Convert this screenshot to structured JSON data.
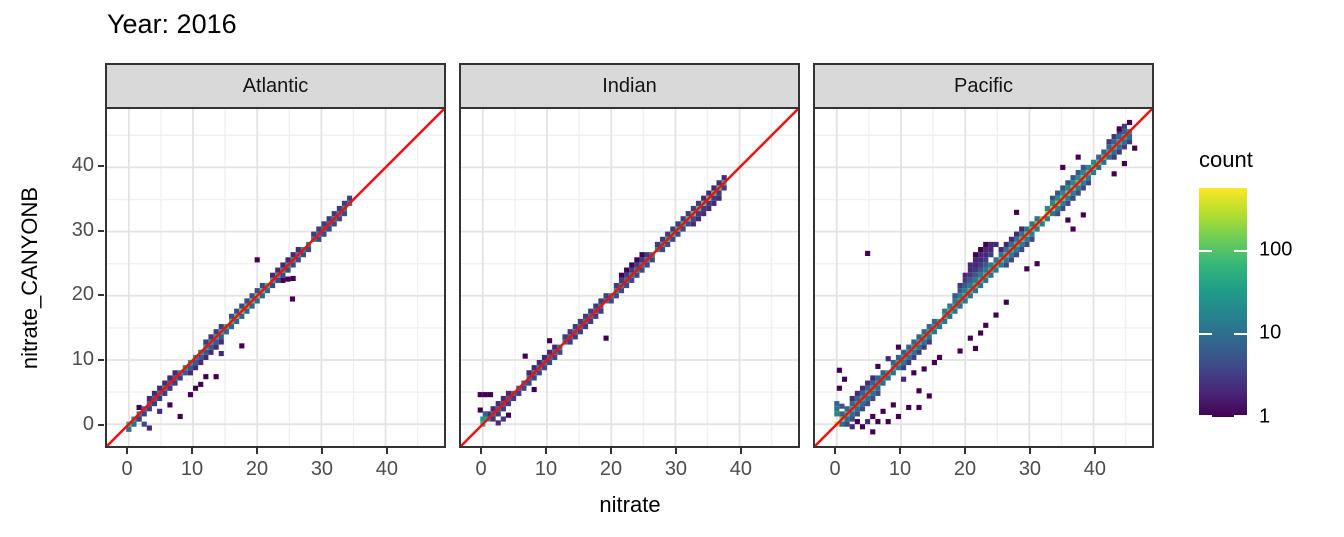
{
  "chart_data": {
    "type": "heatmap",
    "title": "Year: 2016",
    "xlabel": "nitrate",
    "ylabel": "nitrate_CANYONB",
    "axis": {
      "domain": [
        -3.4,
        49.1
      ],
      "ticks": [
        0,
        10,
        20,
        30,
        40
      ],
      "minor_ticks": [
        5,
        15,
        25,
        35,
        45
      ],
      "tick_color": "#4d4d4d",
      "major_grid_color": "#e3e3e3",
      "minor_grid_color": "#f0f0f0"
    },
    "bin_width": 0.8,
    "reference_line": {
      "type": "y=x",
      "color": "#f40f0f",
      "width": 2.5
    },
    "legend": {
      "title": "count",
      "scale": "log10",
      "ticks": [
        100,
        10,
        1
      ],
      "max": 550
    },
    "viridis": [
      "#440154",
      "#482878",
      "#3e4a89",
      "#31688e",
      "#26828e",
      "#1f9e89",
      "#35b779",
      "#6dcd59",
      "#b4de2c",
      "#fde725"
    ],
    "strip_fill": "#d9d9d9",
    "panel_border": "#333333",
    "panels": [
      {
        "name": "Atlantic",
        "diag": {
          "start": 0,
          "step": 0.8,
          "counts": [
            60,
            30,
            15,
            10,
            8,
            12,
            18,
            15,
            10,
            12,
            20,
            25,
            30,
            20,
            22,
            35,
            30,
            40,
            50,
            60,
            80,
            110,
            130,
            110,
            100,
            120,
            90,
            70,
            50,
            40,
            35,
            30,
            28,
            25,
            22,
            20,
            16,
            14,
            12,
            10,
            14,
            18,
            22,
            12
          ]
        },
        "runs": [
          [
            0.0,
            1.6,
            -0.8,
            10
          ],
          [
            1.6,
            8.0,
            -0.8,
            3
          ],
          [
            3.2,
            7.2,
            0.8,
            2
          ],
          [
            8.8,
            15.2,
            -0.8,
            6
          ],
          [
            9.6,
            14.4,
            -1.6,
            2
          ],
          [
            12.0,
            14.4,
            0.8,
            3
          ],
          [
            15.2,
            21.6,
            -0.8,
            8
          ],
          [
            16.0,
            20.8,
            0.8,
            4
          ],
          [
            22.4,
            28.0,
            -0.8,
            4
          ],
          [
            22.4,
            26.4,
            0.8,
            2
          ],
          [
            28.8,
            34.4,
            0.8,
            3
          ],
          [
            29.6,
            33.6,
            -0.8,
            4
          ]
        ],
        "cells": [
          [
            3.2,
            -0.6,
            2
          ],
          [
            8.0,
            1.2,
            1
          ],
          [
            6.4,
            3.0,
            1
          ],
          [
            4.8,
            2.0,
            2
          ],
          [
            1.6,
            2.6,
            1
          ],
          [
            2.4,
            0.0,
            4
          ],
          [
            9.6,
            4.6,
            1
          ],
          [
            10.4,
            5.6,
            1
          ],
          [
            11.2,
            6.2,
            1
          ],
          [
            12.0,
            7.4,
            1
          ],
          [
            13.6,
            7.4,
            1
          ],
          [
            14.4,
            11.0,
            2
          ],
          [
            17.6,
            12.2,
            1
          ],
          [
            20.0,
            25.6,
            1
          ],
          [
            24.0,
            22.4,
            1
          ],
          [
            24.8,
            22.6,
            1
          ],
          [
            25.6,
            22.7,
            1
          ],
          [
            25.5,
            19.5,
            1
          ]
        ]
      },
      {
        "name": "Indian",
        "diag": {
          "start": 0,
          "step": 0.8,
          "counts": [
            60,
            30,
            12,
            8,
            6,
            8,
            10,
            8,
            10,
            12,
            15,
            18,
            20,
            15,
            12,
            15,
            12,
            10,
            12,
            15,
            18,
            15,
            12,
            15,
            12,
            15,
            18,
            20,
            15,
            18,
            20,
            25,
            20,
            18,
            25,
            35,
            50,
            60,
            70,
            60,
            80,
            100,
            90,
            110,
            120,
            100,
            90,
            60
          ]
        },
        "runs": [
          [
            0.8,
            4.0,
            0.8,
            2
          ],
          [
            1.6,
            5.6,
            -0.8,
            3
          ],
          [
            6.4,
            12.0,
            -0.8,
            4
          ],
          [
            7.2,
            11.2,
            0.8,
            2
          ],
          [
            12.8,
            19.2,
            0.8,
            3
          ],
          [
            13.6,
            18.4,
            -0.8,
            3
          ],
          [
            20.0,
            26.4,
            -0.8,
            4
          ],
          [
            20.8,
            25.6,
            0.8,
            3
          ],
          [
            21.6,
            24.8,
            1.6,
            1
          ],
          [
            27.2,
            33.6,
            0.8,
            3
          ],
          [
            28.0,
            32.8,
            -0.8,
            4
          ],
          [
            32.8,
            36.8,
            -1.6,
            2
          ],
          [
            33.6,
            37.6,
            -0.8,
            3
          ],
          [
            34.4,
            37.6,
            0.8,
            2
          ]
        ],
        "cells": [
          [
            -0.4,
            4.6,
            1
          ],
          [
            0.4,
            4.6,
            1
          ],
          [
            1.2,
            4.6,
            1
          ],
          [
            -0.4,
            2.2,
            1
          ],
          [
            0.0,
            0.8,
            30
          ],
          [
            0.4,
            1.6,
            8
          ],
          [
            2.4,
            0.2,
            2
          ],
          [
            3.2,
            0.8,
            3
          ],
          [
            4.0,
            1.4,
            1
          ],
          [
            6.6,
            10.6,
            1
          ],
          [
            19.2,
            13.4,
            1
          ],
          [
            8.0,
            5.4,
            1
          ],
          [
            10.4,
            13.0,
            1
          ]
        ]
      },
      {
        "name": "Pacific",
        "diag": {
          "start": 0,
          "step": 0.8,
          "counts": [
            400,
            150,
            80,
            50,
            40,
            45,
            50,
            40,
            35,
            30,
            40,
            45,
            50,
            40,
            35,
            50,
            60,
            55,
            45,
            40,
            50,
            60,
            70,
            60,
            50,
            60,
            70,
            80,
            70,
            60,
            70,
            80,
            90,
            80,
            70,
            80,
            90,
            100,
            110,
            130,
            200,
            250,
            200,
            150,
            120,
            130,
            140,
            120,
            100,
            90,
            100,
            90,
            80,
            70,
            60,
            50,
            40,
            30
          ]
        },
        "runs": [
          [
            0.8,
            7.2,
            0.8,
            8
          ],
          [
            0.8,
            8.0,
            -0.8,
            10
          ],
          [
            1.6,
            6.4,
            -1.6,
            4
          ],
          [
            2.4,
            5.6,
            1.6,
            2
          ],
          [
            8.8,
            16.0,
            -0.8,
            12
          ],
          [
            8.8,
            15.2,
            0.8,
            8
          ],
          [
            10.4,
            14.4,
            -1.6,
            3
          ],
          [
            16.8,
            24.0,
            0.8,
            15
          ],
          [
            16.8,
            24.0,
            -0.8,
            12
          ],
          [
            18.4,
            23.2,
            1.6,
            6
          ],
          [
            19.2,
            24.0,
            2.4,
            3
          ],
          [
            20.0,
            24.8,
            3.2,
            2
          ],
          [
            20.8,
            24.0,
            4.0,
            2
          ],
          [
            21.6,
            23.2,
            4.8,
            1
          ],
          [
            24.8,
            32.0,
            -0.8,
            15
          ],
          [
            24.8,
            31.2,
            0.8,
            12
          ],
          [
            26.4,
            30.4,
            -1.6,
            4
          ],
          [
            25.6,
            28.8,
            1.6,
            2
          ],
          [
            32.8,
            40.0,
            0.8,
            20
          ],
          [
            32.8,
            40.0,
            -0.8,
            15
          ],
          [
            33.6,
            38.4,
            1.6,
            5
          ],
          [
            34.4,
            39.2,
            -1.6,
            4
          ],
          [
            40.8,
            45.6,
            -0.8,
            10
          ],
          [
            40.8,
            44.8,
            0.8,
            8
          ],
          [
            42.4,
            44.8,
            1.6,
            3
          ],
          [
            43.2,
            45.6,
            -1.6,
            3
          ]
        ],
        "cells": [
          [
            0.0,
            1.6,
            20
          ],
          [
            0.0,
            2.4,
            12
          ],
          [
            0.0,
            3.2,
            8
          ],
          [
            0.8,
            2.8,
            5
          ],
          [
            0.4,
            5.6,
            1
          ],
          [
            0.4,
            8.4,
            1
          ],
          [
            1.2,
            7.0,
            1
          ],
          [
            2.4,
            -0.4,
            2
          ],
          [
            3.2,
            0.4,
            1
          ],
          [
            4.0,
            -0.4,
            1
          ],
          [
            4.8,
            0.4,
            2
          ],
          [
            5.6,
            1.2,
            1
          ],
          [
            6.4,
            0.4,
            1
          ],
          [
            7.2,
            2.0,
            1
          ],
          [
            8.0,
            0.4,
            1
          ],
          [
            8.8,
            3.0,
            1
          ],
          [
            9.6,
            1.2,
            1
          ],
          [
            5.6,
            -1.2,
            1
          ],
          [
            11.2,
            2.6,
            1
          ],
          [
            12.8,
            2.6,
            1
          ],
          [
            10.4,
            7.0,
            2
          ],
          [
            12.0,
            8.0,
            1
          ],
          [
            13.6,
            8.6,
            1
          ],
          [
            15.2,
            9.6,
            1
          ],
          [
            16.0,
            10.4,
            1
          ],
          [
            14.4,
            4.4,
            1
          ],
          [
            12.8,
            5.2,
            1
          ],
          [
            8.0,
            10.2,
            2
          ],
          [
            9.6,
            12.0,
            1
          ],
          [
            6.4,
            9.0,
            1
          ],
          [
            4.8,
            26.6,
            1
          ],
          [
            19.2,
            11.4,
            1
          ],
          [
            21.6,
            11.8,
            1
          ],
          [
            20.8,
            13.4,
            1
          ],
          [
            23.2,
            15.4,
            1
          ],
          [
            24.8,
            17.0,
            1
          ],
          [
            26.4,
            19.0,
            1
          ],
          [
            22.4,
            14.2,
            1
          ],
          [
            31.2,
            25.0,
            1
          ],
          [
            29.6,
            24.2,
            1
          ],
          [
            28.0,
            33.0,
            1
          ],
          [
            36.8,
            30.4,
            1
          ],
          [
            38.4,
            32.6,
            1
          ],
          [
            35.2,
            40.0,
            1
          ],
          [
            37.6,
            41.6,
            1
          ],
          [
            36.0,
            31.8,
            1
          ],
          [
            43.2,
            39.0,
            1
          ],
          [
            44.8,
            40.6,
            1
          ],
          [
            46.4,
            43.0,
            1
          ],
          [
            44.0,
            46.0,
            1
          ],
          [
            45.6,
            47.0,
            1
          ]
        ]
      }
    ]
  }
}
